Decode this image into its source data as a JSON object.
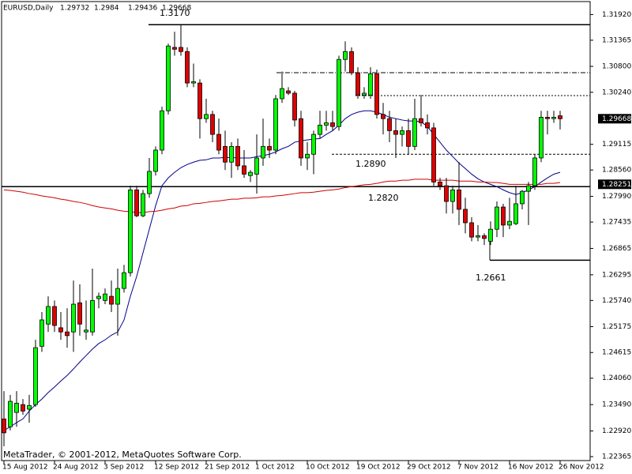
{
  "chart_data": {
    "type": "candlestick",
    "symbol": "EURUSD,Daily",
    "copyright": "MetaTrader, © 2001-2012, MetaQuotes Software Corp.",
    "categories": [
      "15 Aug 2012",
      null,
      null,
      null,
      null,
      null,
      null,
      null,
      "24 Aug 2012",
      null,
      null,
      null,
      null,
      null,
      null,
      null,
      "3 Sep 2012",
      null,
      null,
      null,
      null,
      null,
      null,
      null,
      "12 Sep 2012",
      null,
      null,
      null,
      null,
      null,
      null,
      null,
      "21 Sep 2012",
      null,
      null,
      null,
      null,
      null,
      null,
      null,
      "1 Oct 2012",
      null,
      null,
      null,
      null,
      null,
      null,
      null,
      "10 Oct 2012",
      null,
      null,
      null,
      null,
      null,
      null,
      null,
      "19 Oct 2012",
      null,
      null,
      null,
      null,
      null,
      null,
      null,
      "29 Oct 2012",
      null,
      null,
      null,
      null,
      null,
      null,
      null,
      "7 Nov 2012",
      null,
      null,
      null,
      null,
      null,
      null,
      null,
      "16 Nov 2012",
      null,
      null,
      null,
      null,
      null,
      null,
      null,
      "26 Nov 2012"
    ],
    "open": [
      1.2318,
      1.2301,
      1.2332,
      1.2349,
      1.2339,
      1.2349,
      1.2475,
      1.2523,
      1.2561,
      1.2515,
      1.2506,
      1.2506,
      1.2569,
      1.2506,
      1.2506,
      1.2578,
      1.2574,
      1.2583,
      1.2566,
      1.26,
      1.2634,
      1.2813,
      1.2757,
      1.2805,
      1.2853,
      1.2899,
      1.2984,
      1.3121,
      1.3121,
      1.3112,
      1.3044,
      1.3044,
      1.2967,
      1.2976,
      1.2933,
      1.2907,
      1.2873,
      1.2907,
      1.2865,
      1.2844,
      1.2847,
      1.2882,
      1.2907,
      1.2899,
      1.301,
      1.3027,
      1.3022,
      1.2967,
      1.2882,
      1.289,
      1.2933,
      1.2953,
      1.2958,
      1.295,
      1.3095,
      1.3112,
      1.3066,
      1.3018,
      1.3018,
      1.3064,
      1.2976,
      1.2967,
      1.2941,
      1.2933,
      1.2941,
      1.2907,
      1.2967,
      1.2958,
      1.2947,
      1.283,
      1.2822,
      1.2788,
      1.2813,
      1.2771,
      1.2742,
      1.2711,
      1.2714,
      1.2702,
      1.2728,
      1.2776,
      1.2737,
      1.274,
      1.2783,
      1.281,
      1.2822,
      1.2882,
      1.297,
      1.2967,
      1.29732
    ],
    "high": [
      1.2378,
      1.237,
      1.2378,
      1.2361,
      1.237,
      1.2489,
      1.2549,
      1.2583,
      1.2574,
      1.2549,
      1.2557,
      1.2617,
      1.2609,
      1.2574,
      1.2643,
      1.2591,
      1.26,
      1.2617,
      1.2643,
      1.2651,
      1.2822,
      1.2822,
      1.2813,
      1.2882,
      1.2907,
      1.2993,
      1.3129,
      1.3155,
      1.317,
      1.3121,
      1.3086,
      1.3052,
      1.301,
      1.2984,
      1.2967,
      1.2941,
      1.2916,
      1.2924,
      1.2899,
      1.2856,
      1.2933,
      1.2967,
      1.2924,
      1.3018,
      1.3069,
      1.3035,
      1.3027,
      1.2984,
      1.2916,
      1.2941,
      1.2984,
      1.2984,
      1.2984,
      1.3103,
      1.3134,
      1.3121,
      1.3078,
      1.3035,
      1.3078,
      1.3073,
      1.3001,
      1.2984,
      1.2967,
      1.295,
      1.2967,
      1.301,
      1.3018,
      1.2976,
      1.2958,
      1.2839,
      1.2839,
      1.2822,
      1.2873,
      1.2796,
      1.2754,
      1.2737,
      1.2719,
      1.2745,
      1.2788,
      1.2783,
      1.2796,
      1.2822,
      1.2813,
      1.283,
      1.289,
      1.2984,
      1.2984,
      1.2984,
      1.2984
    ],
    "low": [
      1.2259,
      1.2293,
      1.2301,
      1.2327,
      1.231,
      1.2344,
      1.2463,
      1.2506,
      1.2506,
      1.2489,
      1.2472,
      1.2463,
      1.2498,
      1.2489,
      1.2498,
      1.2557,
      1.2566,
      1.2549,
      1.2498,
      1.2591,
      1.2626,
      1.2754,
      1.2754,
      1.2796,
      1.2844,
      1.289,
      1.2976,
      1.3103,
      1.3103,
      1.3035,
      1.3035,
      1.2924,
      1.2958,
      1.2916,
      1.289,
      1.2856,
      1.2839,
      1.2856,
      1.2839,
      1.283,
      1.2805,
      1.2865,
      1.2882,
      1.289,
      1.3001,
      1.3018,
      1.295,
      1.2865,
      1.2856,
      1.2847,
      1.2924,
      1.2941,
      1.2941,
      1.2941,
      1.3069,
      1.3061,
      1.301,
      1.301,
      1.301,
      1.2967,
      1.2933,
      1.2916,
      1.2882,
      1.2907,
      1.289,
      1.2899,
      1.295,
      1.2933,
      1.2822,
      1.2813,
      1.2762,
      1.2762,
      1.2737,
      1.2719,
      1.2702,
      1.2702,
      1.2694,
      1.2694,
      1.2711,
      1.2711,
      1.2728,
      1.2737,
      1.2771,
      1.2737,
      1.2813,
      1.2873,
      1.2933,
      1.2958,
      1.29436
    ],
    "close": [
      1.2288,
      1.2356,
      1.2352,
      1.2335,
      1.2347,
      1.2472,
      1.2532,
      1.2561,
      1.252,
      1.2506,
      1.2498,
      1.2566,
      1.2523,
      1.251,
      1.2574,
      1.2583,
      1.2588,
      1.2566,
      1.26,
      1.2634,
      1.2813,
      1.2757,
      1.2805,
      1.2853,
      1.2899,
      1.2984,
      1.3124,
      1.3117,
      1.3112,
      1.3044,
      1.3047,
      1.2967,
      1.2976,
      1.2933,
      1.2899,
      1.2873,
      1.2907,
      1.2865,
      1.2847,
      1.2851,
      1.2882,
      1.2907,
      1.2899,
      1.301,
      1.3032,
      1.3022,
      1.2964,
      1.2882,
      1.289,
      1.2933,
      1.2953,
      1.2958,
      1.295,
      1.3095,
      1.3112,
      1.3066,
      1.3018,
      1.3022,
      1.3064,
      1.2976,
      1.2967,
      1.2941,
      1.2933,
      1.2941,
      1.2907,
      1.2967,
      1.2958,
      1.2947,
      1.283,
      1.2822,
      1.2788,
      1.2813,
      1.2771,
      1.2742,
      1.2711,
      1.2714,
      1.2708,
      1.2728,
      1.2776,
      1.2737,
      1.2745,
      1.2783,
      1.281,
      1.2822,
      1.2882,
      1.297,
      1.2967,
      1.297,
      1.29668
    ],
    "up_color": "#00ff00",
    "down_color": "#e00000",
    "overlays": [
      {
        "color": "#00008b",
        "values": [
          1.2293,
          1.2301,
          1.231,
          1.2318,
          1.2335,
          1.2349,
          1.2361,
          1.2375,
          1.2387,
          1.24,
          1.2412,
          1.2426,
          1.2441,
          1.2455,
          1.2469,
          1.2481,
          1.2489,
          1.2499,
          1.2506,
          1.2532,
          1.2583,
          1.2626,
          1.2677,
          1.2728,
          1.2779,
          1.2822,
          1.2839,
          1.2851,
          1.2861,
          1.2868,
          1.2873,
          1.2877,
          1.2878,
          1.2882,
          1.2882,
          1.2883,
          1.2883,
          1.2882,
          1.2882,
          1.2882,
          1.2885,
          1.2887,
          1.289,
          1.2895,
          1.2902,
          1.2907,
          1.2916,
          1.2919,
          1.2921,
          1.2923,
          1.2924,
          1.2933,
          1.2941,
          1.2953,
          1.2967,
          1.2976,
          1.2981,
          1.2984,
          1.2984,
          1.2981,
          1.2976,
          1.297,
          1.2967,
          1.2964,
          1.2962,
          1.2962,
          1.296,
          1.295,
          1.2933,
          1.2916,
          1.2899,
          1.2885,
          1.2871,
          1.2859,
          1.2847,
          1.2837,
          1.283,
          1.2825,
          1.282,
          1.2813,
          1.2807,
          1.2803,
          1.2807,
          1.2813,
          1.282,
          1.283,
          1.2839,
          1.2847,
          1.2851
        ]
      },
      {
        "color": "#d00000",
        "values": [
          1.2813,
          1.2812,
          1.281,
          1.2808,
          1.2805,
          1.2803,
          1.28,
          1.2798,
          1.2796,
          1.2793,
          1.2791,
          1.2788,
          1.2786,
          1.2783,
          1.2779,
          1.2776,
          1.2774,
          1.2772,
          1.2769,
          1.2767,
          1.2766,
          1.2764,
          1.2764,
          1.2766,
          1.2767,
          1.2769,
          1.2772,
          1.2774,
          1.2778,
          1.2779,
          1.2783,
          1.2784,
          1.2786,
          1.2788,
          1.2789,
          1.2791,
          1.2793,
          1.2793,
          1.2795,
          1.2795,
          1.2796,
          1.2798,
          1.2798,
          1.28,
          1.2801,
          1.2803,
          1.2805,
          1.2807,
          1.2807,
          1.2808,
          1.281,
          1.2812,
          1.2813,
          1.2815,
          1.2818,
          1.282,
          1.2822,
          1.2824,
          1.2825,
          1.2827,
          1.283,
          1.2832,
          1.2832,
          1.2834,
          1.2834,
          1.2836,
          1.2836,
          1.2836,
          1.2834,
          1.2834,
          1.2834,
          1.2834,
          1.2832,
          1.2832,
          1.2832,
          1.283,
          1.283,
          1.2829,
          1.2829,
          1.2827,
          1.2825,
          1.2825,
          1.2825,
          1.2825,
          1.2825,
          1.2825,
          1.2827,
          1.2827,
          1.2829
        ]
      }
    ],
    "levels": [
      {
        "value": 1.317,
        "label": "1.3170"
      },
      {
        "value": 1.289,
        "label": "1.2890"
      },
      {
        "value": 1.282,
        "label": "1.2820"
      },
      {
        "value": 1.2661,
        "label": "1.2661"
      }
    ],
    "marker_price": 1.28251,
    "ylim": [
      1.2228,
      1.322
    ],
    "yticks": [
      {
        "value": 1.3192,
        "label": "1.31920"
      },
      1.31365,
      {
        "value": 1.308,
        "label": "1.30800"
      },
      {
        "value": 1.3024,
        "label": "1.30240"
      },
      1.29115,
      {
        "value": 1.2856,
        "label": "1.28560"
      },
      {
        "value": 1.2799,
        "label": "1.27990"
      },
      1.27435,
      1.26865,
      1.26295,
      {
        "value": 1.2574,
        "label": "1.25740"
      },
      1.25175,
      1.24615,
      {
        "value": 1.2406,
        "label": "1.24060"
      },
      {
        "value": 1.2349,
        "label": "1.23490"
      },
      {
        "value": 1.2292,
        "label": "1.22920"
      },
      1.22365
    ]
  }
}
